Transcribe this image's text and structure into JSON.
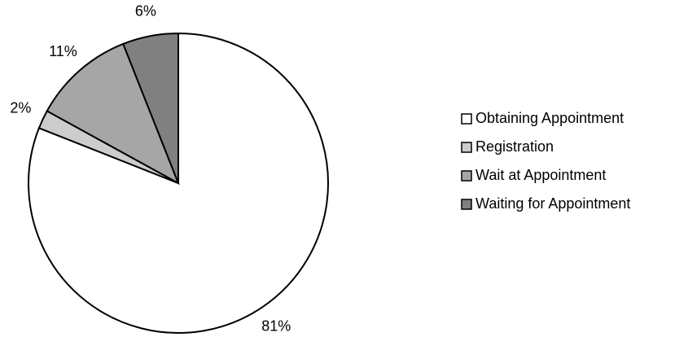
{
  "chart_data": {
    "type": "pie",
    "categories": [
      "Obtaining Appointment",
      "Registration",
      "Wait at Appointment",
      "Waiting for Appointment"
    ],
    "values": [
      81,
      2,
      11,
      6
    ],
    "value_labels": [
      "81%",
      "2%",
      "11%",
      "6%"
    ],
    "colors": [
      "#ffffff",
      "#cccccc",
      "#a6a6a6",
      "#808080"
    ],
    "legend": "right"
  }
}
